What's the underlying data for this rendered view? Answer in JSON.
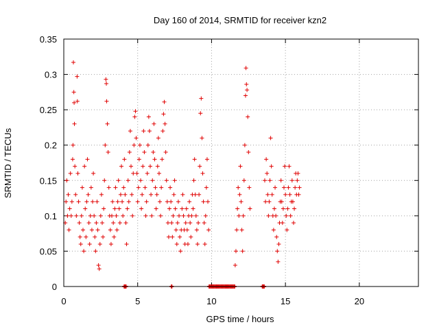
{
  "chart_data": {
    "type": "scatter",
    "title": "Day 160 of 2014, SRMTID for receiver kzn2",
    "xlabel": "GPS time / hours",
    "ylabel": "SRMTID / TECUs",
    "xlim": [
      0,
      24
    ],
    "ylim": [
      0,
      0.35
    ],
    "grid": true,
    "x_ticks": [
      0,
      5,
      10,
      15,
      20
    ],
    "x_tick_labels": [
      "0",
      "5",
      "10",
      "15",
      "20"
    ],
    "y_ticks": [
      0,
      0.05,
      0.1,
      0.15,
      0.2,
      0.25,
      0.3,
      0.35
    ],
    "y_tick_labels": [
      "0",
      "0.05",
      "0.1",
      "0.15",
      "0.2",
      "0.25",
      "0.3",
      "0.35"
    ],
    "marker": "+",
    "color": "#e00000",
    "series": [
      {
        "name": "SRMTID",
        "points": [
          [
            0.1,
            0.09
          ],
          [
            0.15,
            0.12
          ],
          [
            0.2,
            0.15
          ],
          [
            0.25,
            0.1
          ],
          [
            0.3,
            0.13
          ],
          [
            0.35,
            0.08
          ],
          [
            0.4,
            0.11
          ],
          [
            0.45,
            0.16
          ],
          [
            0.5,
            0.1
          ],
          [
            0.55,
            0.12
          ],
          [
            0.6,
            0.18
          ],
          [
            0.62,
            0.2
          ],
          [
            0.65,
            0.317
          ],
          [
            0.68,
            0.275
          ],
          [
            0.7,
            0.26
          ],
          [
            0.72,
            0.23
          ],
          [
            0.75,
            0.17
          ],
          [
            0.8,
            0.13
          ],
          [
            0.85,
            0.1
          ],
          [
            0.9,
            0.297
          ],
          [
            0.92,
            0.262
          ],
          [
            0.95,
            0.16
          ],
          [
            1.0,
            0.12
          ],
          [
            1.05,
            0.09
          ],
          [
            1.1,
            0.07
          ],
          [
            1.15,
            0.06
          ],
          [
            1.2,
            0.1
          ],
          [
            1.25,
            0.14
          ],
          [
            1.3,
            0.08
          ],
          [
            1.35,
            0.05
          ],
          [
            1.4,
            0.17
          ],
          [
            1.45,
            0.11
          ],
          [
            1.5,
            0.07
          ],
          [
            1.55,
            0.12
          ],
          [
            1.6,
            0.18
          ],
          [
            1.65,
            0.13
          ],
          [
            1.7,
            0.09
          ],
          [
            1.75,
            0.06
          ],
          [
            1.8,
            0.1
          ],
          [
            1.85,
            0.14
          ],
          [
            1.9,
            0.08
          ],
          [
            1.95,
            0.12
          ],
          [
            2.0,
            0.16
          ],
          [
            2.05,
            0.1
          ],
          [
            2.1,
            0.07
          ],
          [
            2.15,
            0.05
          ],
          [
            2.2,
            0.09
          ],
          [
            2.25,
            0.12
          ],
          [
            2.3,
            0.08
          ],
          [
            2.35,
            0.03
          ],
          [
            2.4,
            0.025
          ],
          [
            2.45,
            0.06
          ],
          [
            2.5,
            0.1
          ],
          [
            2.55,
            0.13
          ],
          [
            2.6,
            0.09
          ],
          [
            2.65,
            0.07
          ],
          [
            2.7,
            0.11
          ],
          [
            2.75,
            0.15
          ],
          [
            2.8,
            0.2
          ],
          [
            2.85,
            0.293
          ],
          [
            2.88,
            0.287
          ],
          [
            2.9,
            0.262
          ],
          [
            2.95,
            0.23
          ],
          [
            3.0,
            0.19
          ],
          [
            3.05,
            0.14
          ],
          [
            3.1,
            0.1
          ],
          [
            3.15,
            0.08
          ],
          [
            3.2,
            0.06
          ],
          [
            3.25,
            0.1
          ],
          [
            3.3,
            0.12
          ],
          [
            3.35,
            0.09
          ],
          [
            3.4,
            0.07
          ],
          [
            3.45,
            0.11
          ],
          [
            3.5,
            0.14
          ],
          [
            3.55,
            0.1
          ],
          [
            3.6,
            0.08
          ],
          [
            3.65,
            0.12
          ],
          [
            3.7,
            0.15
          ],
          [
            3.75,
            0.11
          ],
          [
            3.8,
            0.09
          ],
          [
            3.85,
            0.13
          ],
          [
            3.9,
            0.17
          ],
          [
            3.95,
            0.12
          ],
          [
            4.0,
            0.1
          ],
          [
            4.05,
            0.14
          ],
          [
            4.1,
            0.18
          ],
          [
            4.15,
            0.13
          ],
          [
            4.2,
            0.09
          ],
          [
            4.25,
            0.06
          ],
          [
            4.3,
            0.11
          ],
          [
            4.35,
            0.15
          ],
          [
            4.4,
            0.12
          ],
          [
            4.45,
            0.19
          ],
          [
            4.5,
            0.22
          ],
          [
            4.55,
            0.17
          ],
          [
            4.6,
            0.13
          ],
          [
            4.65,
            0.1
          ],
          [
            4.7,
            0.16
          ],
          [
            4.75,
            0.2
          ],
          [
            4.8,
            0.24
          ],
          [
            4.85,
            0.248
          ],
          [
            4.9,
            0.21
          ],
          [
            4.95,
            0.16
          ],
          [
            5.0,
            0.12
          ],
          [
            5.05,
            0.14
          ],
          [
            5.1,
            0.18
          ],
          [
            5.15,
            0.2
          ],
          [
            5.2,
            0.15
          ],
          [
            5.25,
            0.11
          ],
          [
            5.3,
            0.13
          ],
          [
            5.35,
            0.17
          ],
          [
            5.4,
            0.22
          ],
          [
            5.45,
            0.19
          ],
          [
            5.5,
            0.14
          ],
          [
            5.55,
            0.1
          ],
          [
            5.6,
            0.12
          ],
          [
            5.65,
            0.16
          ],
          [
            5.7,
            0.2
          ],
          [
            5.75,
            0.24
          ],
          [
            5.8,
            0.22
          ],
          [
            5.85,
            0.17
          ],
          [
            5.9,
            0.13
          ],
          [
            5.95,
            0.1
          ],
          [
            6.0,
            0.15
          ],
          [
            6.05,
            0.19
          ],
          [
            6.1,
            0.23
          ],
          [
            6.15,
            0.18
          ],
          [
            6.2,
            0.14
          ],
          [
            6.25,
            0.11
          ],
          [
            6.3,
            0.13
          ],
          [
            6.35,
            0.17
          ],
          [
            6.4,
            0.21
          ],
          [
            6.45,
            0.16
          ],
          [
            6.5,
            0.12
          ],
          [
            6.55,
            0.1
          ],
          [
            6.6,
            0.14
          ],
          [
            6.65,
            0.18
          ],
          [
            6.7,
            0.22
          ],
          [
            6.75,
            0.244
          ],
          [
            6.8,
            0.261
          ],
          [
            6.85,
            0.23
          ],
          [
            6.9,
            0.19
          ],
          [
            6.95,
            0.15
          ],
          [
            7.0,
            0.12
          ],
          [
            7.05,
            0.09
          ],
          [
            7.1,
            0.07
          ],
          [
            7.15,
            0.11
          ],
          [
            7.2,
            0.14
          ],
          [
            7.25,
            0.12
          ],
          [
            7.3,
            0.09
          ],
          [
            7.35,
            0.07
          ],
          [
            7.4,
            0.1
          ],
          [
            7.45,
            0.13
          ],
          [
            7.5,
            0.15
          ],
          [
            7.55,
            0.11
          ],
          [
            7.6,
            0.08
          ],
          [
            7.65,
            0.06
          ],
          [
            7.7,
            0.09
          ],
          [
            7.75,
            0.12
          ],
          [
            7.8,
            0.1
          ],
          [
            7.85,
            0.07
          ],
          [
            7.9,
            0.05
          ],
          [
            7.95,
            0.08
          ],
          [
            8.0,
            0.11
          ],
          [
            8.05,
            0.13
          ],
          [
            8.1,
            0.1
          ],
          [
            8.15,
            0.08
          ],
          [
            8.2,
            0.06
          ],
          [
            8.25,
            0.09
          ],
          [
            8.3,
            0.11
          ],
          [
            8.35,
            0.08
          ],
          [
            8.4,
            0.06
          ],
          [
            8.45,
            0.1
          ],
          [
            8.5,
            0.12
          ],
          [
            8.55,
            0.09
          ],
          [
            8.6,
            0.07
          ],
          [
            8.65,
            0.1
          ],
          [
            8.7,
            0.13
          ],
          [
            8.75,
            0.11
          ],
          [
            8.8,
            0.15
          ],
          [
            8.85,
            0.18
          ],
          [
            8.9,
            0.13
          ],
          [
            8.95,
            0.1
          ],
          [
            9.0,
            0.08
          ],
          [
            9.05,
            0.06
          ],
          [
            9.1,
            0.09
          ],
          [
            9.15,
            0.13
          ],
          [
            9.2,
            0.17
          ],
          [
            9.25,
            0.245
          ],
          [
            9.3,
            0.266
          ],
          [
            9.35,
            0.21
          ],
          [
            9.4,
            0.16
          ],
          [
            9.45,
            0.12
          ],
          [
            9.5,
            0.09
          ],
          [
            9.55,
            0.06
          ],
          [
            9.6,
            0.1
          ],
          [
            9.65,
            0.14
          ],
          [
            9.7,
            0.18
          ],
          [
            9.75,
            0.12
          ],
          [
            9.8,
            0.08
          ],
          [
            11.6,
            0.03
          ],
          [
            11.65,
            0.05
          ],
          [
            11.7,
            0.08
          ],
          [
            11.75,
            0.11
          ],
          [
            11.8,
            0.14
          ],
          [
            11.85,
            0.1
          ],
          [
            11.9,
            0.13
          ],
          [
            11.95,
            0.17
          ],
          [
            12.0,
            0.12
          ],
          [
            12.05,
            0.08
          ],
          [
            12.1,
            0.05
          ],
          [
            12.15,
            0.1
          ],
          [
            12.2,
            0.15
          ],
          [
            12.25,
            0.2
          ],
          [
            12.3,
            0.27
          ],
          [
            12.33,
            0.309
          ],
          [
            12.36,
            0.286
          ],
          [
            12.4,
            0.278
          ],
          [
            12.45,
            0.24
          ],
          [
            12.5,
            0.19
          ],
          [
            12.55,
            0.14
          ],
          [
            12.6,
            0.11
          ],
          [
            13.6,
            0.15
          ],
          [
            13.65,
            0.12
          ],
          [
            13.7,
            0.18
          ],
          [
            13.75,
            0.16
          ],
          [
            13.8,
            0.13
          ],
          [
            13.85,
            0.1
          ],
          [
            13.9,
            0.12
          ],
          [
            13.95,
            0.15
          ],
          [
            14.0,
            0.21
          ],
          [
            14.05,
            0.17
          ],
          [
            14.1,
            0.13
          ],
          [
            14.15,
            0.1
          ],
          [
            14.2,
            0.08
          ],
          [
            14.25,
            0.11
          ],
          [
            14.3,
            0.14
          ],
          [
            14.35,
            0.1
          ],
          [
            14.4,
            0.07
          ],
          [
            14.45,
            0.05
          ],
          [
            14.5,
            0.035
          ],
          [
            14.55,
            0.06
          ],
          [
            14.6,
            0.09
          ],
          [
            14.65,
            0.12
          ],
          [
            14.7,
            0.15
          ],
          [
            14.75,
            0.12
          ],
          [
            14.8,
            0.09
          ],
          [
            14.85,
            0.11
          ],
          [
            14.9,
            0.14
          ],
          [
            14.95,
            0.17
          ],
          [
            15.0,
            0.13
          ],
          [
            15.05,
            0.1
          ],
          [
            15.1,
            0.08
          ],
          [
            15.15,
            0.11
          ],
          [
            15.2,
            0.14
          ],
          [
            15.25,
            0.17
          ],
          [
            15.3,
            0.13
          ],
          [
            15.35,
            0.1
          ],
          [
            15.4,
            0.12
          ],
          [
            15.45,
            0.15
          ],
          [
            15.5,
            0.12
          ],
          [
            15.55,
            0.09
          ],
          [
            15.6,
            0.11
          ],
          [
            15.65,
            0.14
          ],
          [
            15.7,
            0.16
          ],
          [
            15.75,
            0.13
          ],
          [
            15.8,
            0.15
          ],
          [
            15.85,
            0.16
          ],
          [
            15.9,
            0.13
          ],
          [
            15.95,
            0.14
          ]
        ]
      }
    ],
    "baseline_markers_x": [
      4.1,
      4.15,
      4.2,
      7.3,
      9.85,
      9.95,
      10.05,
      10.15,
      10.25,
      10.35,
      10.45,
      10.55,
      10.65,
      10.75,
      10.85,
      10.95,
      11.05,
      11.15,
      11.25,
      11.35,
      11.45,
      11.55,
      13.45,
      13.5,
      13.55
    ]
  }
}
